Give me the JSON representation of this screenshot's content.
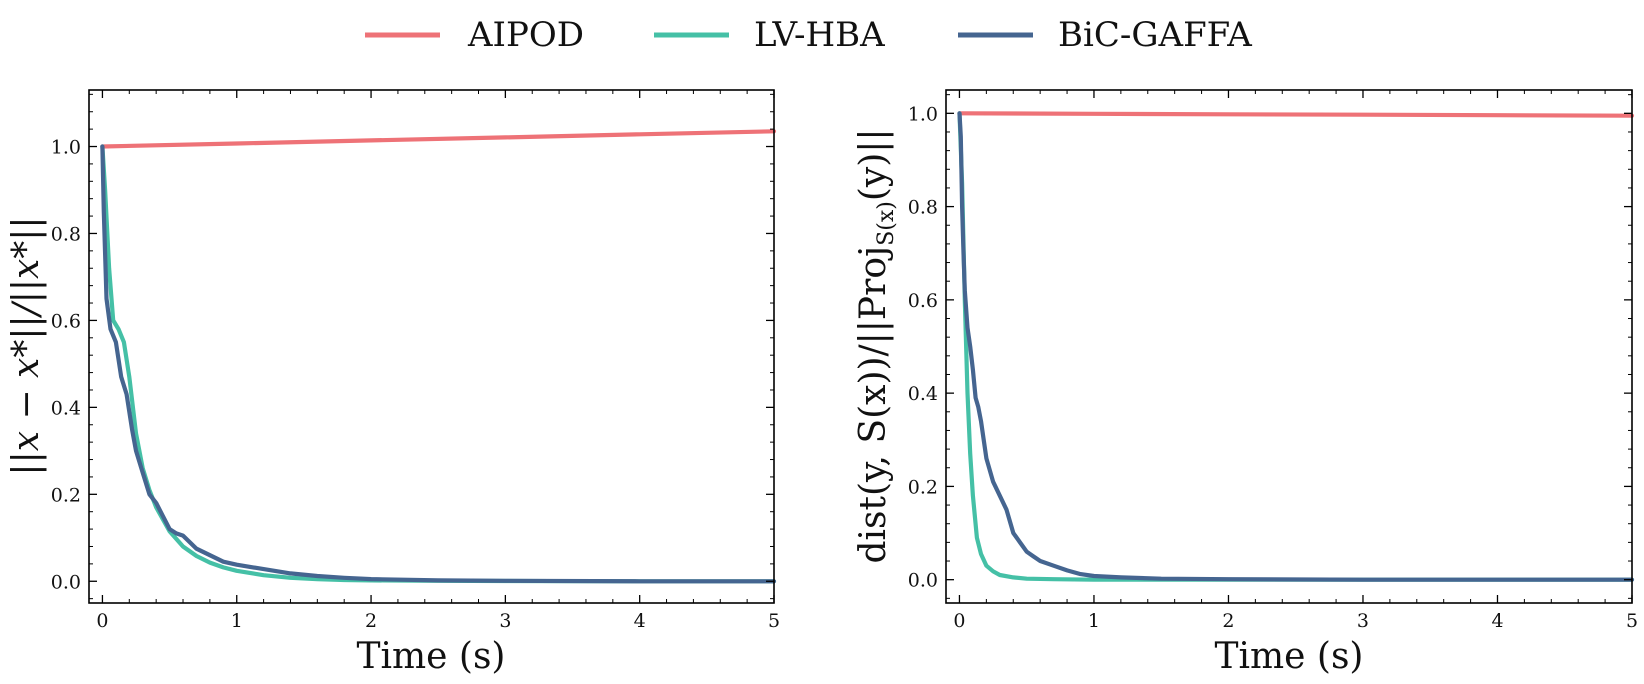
{
  "legend": [
    {
      "label": "AIPOD",
      "color": "#ee7277"
    },
    {
      "label": "LV-HBA",
      "color": "#45c0a6"
    },
    {
      "label": "BiC-GAFFA",
      "color": "#456590"
    }
  ],
  "chart_data": [
    {
      "type": "line",
      "xlabel": "Time (s)",
      "ylabel": "||x − x*||/||x*||",
      "xlim": [
        -0.1,
        5.0
      ],
      "ylim": [
        -0.05,
        1.13
      ],
      "xticks": [
        0,
        1,
        2,
        3,
        4,
        5
      ],
      "xtick_labels": [
        "0",
        "1",
        "2",
        "3",
        "4",
        "5"
      ],
      "yticks": [
        0.0,
        0.2,
        0.4,
        0.6,
        0.8,
        1.0
      ],
      "ytick_labels": [
        "0.0",
        "0.2",
        "0.4",
        "0.6",
        "0.8",
        "1.0"
      ],
      "series": [
        {
          "name": "AIPOD",
          "x": [
            0,
            1,
            2,
            3,
            4,
            5
          ],
          "y": [
            1.0,
            1.007,
            1.014,
            1.021,
            1.028,
            1.035
          ]
        },
        {
          "name": "LV-HBA",
          "x": [
            0,
            0.02,
            0.05,
            0.08,
            0.12,
            0.16,
            0.2,
            0.25,
            0.3,
            0.35,
            0.4,
            0.5,
            0.6,
            0.7,
            0.8,
            0.9,
            1.0,
            1.2,
            1.4,
            1.6,
            1.8,
            2.0,
            2.5,
            3.0,
            4.0,
            5.0
          ],
          "y": [
            1.0,
            0.9,
            0.72,
            0.6,
            0.58,
            0.55,
            0.47,
            0.34,
            0.26,
            0.21,
            0.17,
            0.115,
            0.08,
            0.058,
            0.043,
            0.032,
            0.024,
            0.014,
            0.008,
            0.005,
            0.003,
            0.002,
            0.001,
            0.0005,
            0.0,
            0.0
          ]
        },
        {
          "name": "BiC-GAFFA",
          "x": [
            0,
            0.01,
            0.03,
            0.06,
            0.1,
            0.14,
            0.18,
            0.22,
            0.25,
            0.3,
            0.35,
            0.4,
            0.45,
            0.5,
            0.55,
            0.6,
            0.65,
            0.7,
            0.8,
            0.9,
            1.0,
            1.2,
            1.4,
            1.6,
            1.8,
            2.0,
            2.5,
            3.0,
            4.0,
            5.0
          ],
          "y": [
            1.0,
            0.85,
            0.65,
            0.58,
            0.55,
            0.47,
            0.43,
            0.35,
            0.3,
            0.25,
            0.2,
            0.18,
            0.15,
            0.12,
            0.11,
            0.105,
            0.09,
            0.075,
            0.06,
            0.045,
            0.038,
            0.028,
            0.018,
            0.012,
            0.008,
            0.005,
            0.002,
            0.001,
            0.0,
            0.0
          ]
        }
      ]
    },
    {
      "type": "line",
      "xlabel": "Time (s)",
      "ylabel": "dist(y, S(x))/||Proj",
      "ylabel_sub": "S(x)",
      "ylabel_tail": "(y)||",
      "xlim": [
        -0.1,
        5.0
      ],
      "ylim": [
        -0.05,
        1.05
      ],
      "xticks": [
        0,
        1,
        2,
        3,
        4,
        5
      ],
      "xtick_labels": [
        "0",
        "1",
        "2",
        "3",
        "4",
        "5"
      ],
      "yticks": [
        0.0,
        0.2,
        0.4,
        0.6,
        0.8,
        1.0
      ],
      "ytick_labels": [
        "0.0",
        "0.2",
        "0.4",
        "0.6",
        "0.8",
        "1.0"
      ],
      "series": [
        {
          "name": "AIPOD",
          "x": [
            0,
            1,
            2,
            3,
            4,
            5
          ],
          "y": [
            1.0,
            0.999,
            0.998,
            0.997,
            0.996,
            0.995
          ]
        },
        {
          "name": "LV-HBA",
          "x": [
            0,
            0.02,
            0.04,
            0.06,
            0.08,
            0.1,
            0.13,
            0.16,
            0.2,
            0.25,
            0.3,
            0.4,
            0.5,
            0.7,
            1.0,
            2.0,
            5.0
          ],
          "y": [
            1.0,
            0.85,
            0.6,
            0.4,
            0.27,
            0.18,
            0.09,
            0.055,
            0.03,
            0.018,
            0.01,
            0.005,
            0.002,
            0.001,
            0.0,
            0.0,
            0.0
          ]
        },
        {
          "name": "BiC-GAFFA",
          "x": [
            0,
            0.01,
            0.02,
            0.03,
            0.04,
            0.06,
            0.08,
            0.1,
            0.12,
            0.14,
            0.16,
            0.18,
            0.2,
            0.25,
            0.3,
            0.35,
            0.4,
            0.45,
            0.5,
            0.55,
            0.6,
            0.7,
            0.8,
            0.9,
            1.0,
            1.2,
            1.5,
            2.0,
            3.0,
            5.0
          ],
          "y": [
            1.0,
            0.95,
            0.8,
            0.7,
            0.62,
            0.54,
            0.5,
            0.45,
            0.39,
            0.37,
            0.34,
            0.3,
            0.26,
            0.21,
            0.18,
            0.15,
            0.1,
            0.08,
            0.06,
            0.05,
            0.04,
            0.03,
            0.02,
            0.012,
            0.008,
            0.005,
            0.002,
            0.001,
            0.0,
            0.0
          ]
        }
      ]
    }
  ]
}
